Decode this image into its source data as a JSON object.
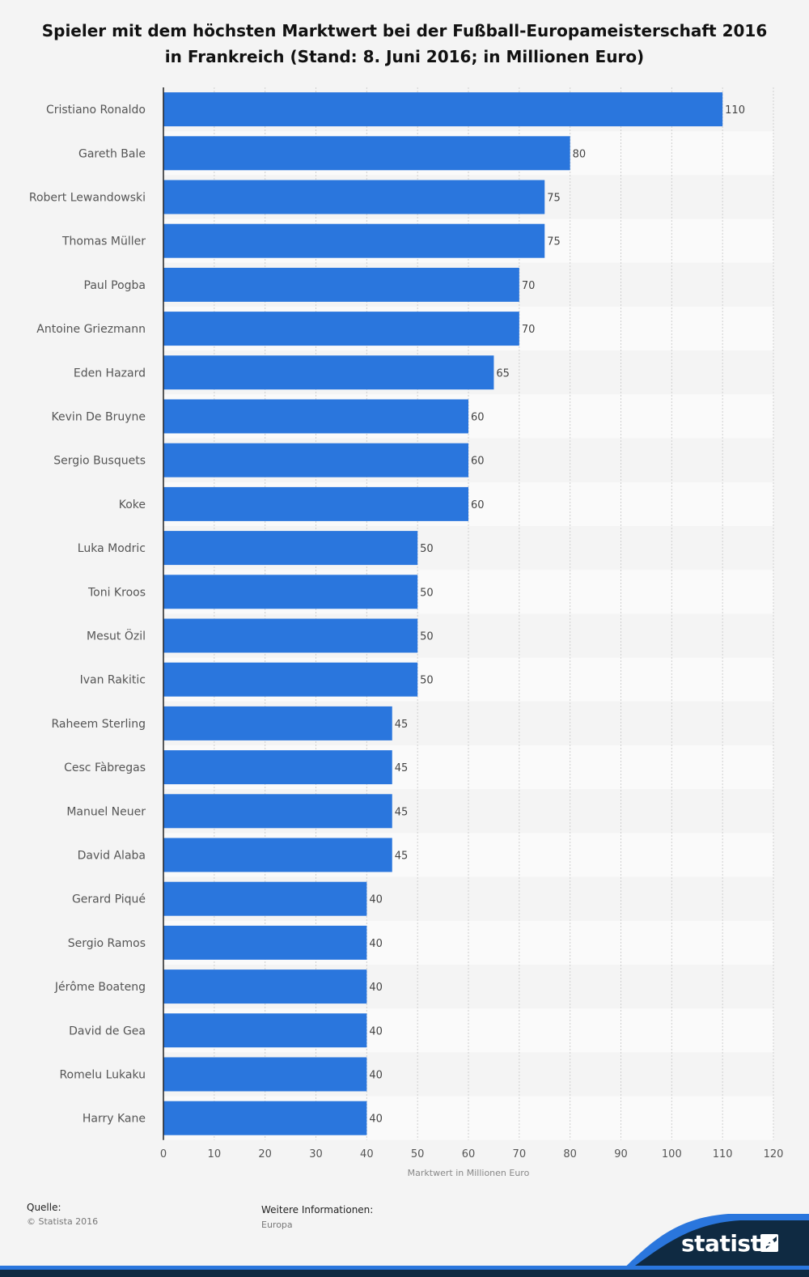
{
  "chart_data": {
    "type": "bar",
    "orientation": "horizontal",
    "title": "Spieler mit dem höchsten Marktwert bei der Fußball-Europameisterschaft 2016 in Frankreich (Stand: 8. Juni 2016; in Millionen Euro)",
    "xlabel": "Marktwert in Millionen Euro",
    "ylabel": "",
    "categories": [
      "Cristiano Ronaldo",
      "Gareth Bale",
      "Robert Lewandowski",
      "Thomas Müller",
      "Paul Pogba",
      "Antoine Griezmann",
      "Eden Hazard",
      "Kevin De Bruyne",
      "Sergio Busquets",
      "Koke",
      "Luka Modric",
      "Toni Kroos",
      "Mesut Özil",
      "Ivan Rakitic",
      "Raheem Sterling",
      "Cesc Fàbregas",
      "Manuel Neuer",
      "David Alaba",
      "Gerard Piqué",
      "Sergio Ramos",
      "Jérôme Boateng",
      "David de Gea",
      "Romelu Lukaku",
      "Harry Kane"
    ],
    "values": [
      110,
      80,
      75,
      75,
      70,
      70,
      65,
      60,
      60,
      60,
      50,
      50,
      50,
      50,
      45,
      45,
      45,
      45,
      40,
      40,
      40,
      40,
      40,
      40
    ],
    "xlim": [
      0,
      120
    ],
    "xticks": [
      0,
      10,
      20,
      30,
      40,
      50,
      60,
      70,
      80,
      90,
      100,
      110,
      120
    ],
    "grid": true,
    "data_labels": true,
    "bar_color": "#2a76dd"
  },
  "footer": {
    "source_heading": "Quelle:",
    "source_text": "© Statista 2016",
    "info_heading": "Weitere Informationen:",
    "info_text": "Europa"
  },
  "brand": {
    "logo_text": "statista",
    "colors": {
      "dark": "#0f2a42",
      "accent": "#2a76dd"
    }
  }
}
